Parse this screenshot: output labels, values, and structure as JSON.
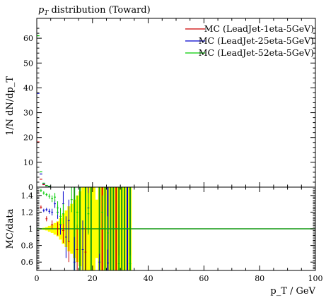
{
  "chart_data": [
    {
      "panel": "main",
      "type": "scatter",
      "title": "p_T distribution (Toward)",
      "title_parts": {
        "var": "p",
        "sub": "T",
        "rest": " distribution (Toward)"
      },
      "ylabel": "1/N dN/dp_T",
      "xlim": [
        0,
        100
      ],
      "ylim": [
        0,
        68
      ],
      "yticks": [
        0,
        10,
        20,
        30,
        40,
        50,
        60
      ],
      "legend_position": "top-right",
      "series": [
        {
          "name": "MC (LeadJet-1eta-5GeV)",
          "color": "#cc0000",
          "points": [
            [
              0.5,
              18.2
            ],
            [
              1.5,
              3.2
            ],
            [
              2.5,
              1.0
            ],
            [
              3.5,
              0.5
            ],
            [
              4.5,
              0.3
            ]
          ]
        },
        {
          "name": "MC (LeadJet-25eta-5GeV)",
          "color": "#0000cc",
          "points": [
            [
              0.5,
              37.8
            ],
            [
              1.5,
              5.3
            ],
            [
              2.5,
              1.4
            ],
            [
              3.5,
              0.6
            ],
            [
              4.5,
              0.3
            ]
          ]
        },
        {
          "name": "MC (LeadJet-52eta-5GeV)",
          "color": "#00cc00",
          "points": [
            [
              0.5,
              61.0
            ],
            [
              1.5,
              6.2
            ],
            [
              2.5,
              1.6
            ],
            [
              3.5,
              0.7
            ],
            [
              4.5,
              0.4
            ]
          ]
        }
      ]
    },
    {
      "panel": "ratio",
      "type": "scatter",
      "ylabel": "MC/data",
      "xlabel": "p_T / GeV",
      "xlim": [
        0,
        100
      ],
      "ylim": [
        0.5,
        1.5
      ],
      "yticks": [
        0.6,
        0.8,
        1,
        1.2,
        1.4
      ],
      "ytick_labels": [
        "0.6",
        "0.8",
        "1",
        "1.2",
        "1.4"
      ],
      "xticks": [
        0,
        20,
        40,
        60,
        80,
        100
      ],
      "xtick_labels": [
        "0",
        "20",
        "40",
        "60",
        "80",
        "100"
      ],
      "reference_line": 1,
      "reference_color": "#119911",
      "band_color": "#ffff00",
      "band": [
        [
          0,
          1,
          0.0
        ],
        [
          1,
          2,
          0.005
        ],
        [
          2,
          3,
          0.012
        ],
        [
          3,
          4,
          0.02
        ],
        [
          4,
          5,
          0.035
        ],
        [
          5,
          6,
          0.05
        ],
        [
          6,
          7,
          0.07
        ],
        [
          7,
          8,
          0.09
        ],
        [
          8,
          9,
          0.13
        ],
        [
          9,
          10,
          0.18
        ],
        [
          10,
          11,
          0.22
        ],
        [
          11,
          12,
          0.27
        ],
        [
          12,
          13,
          0.3
        ],
        [
          13,
          14,
          0.35
        ],
        [
          14,
          15,
          0.4
        ],
        [
          15,
          16,
          0.45
        ],
        [
          16,
          17,
          0.5
        ],
        [
          17,
          18,
          0.55
        ],
        [
          18,
          19,
          0.55
        ],
        [
          19,
          20,
          0.6
        ],
        [
          20,
          21,
          0.5
        ],
        [
          21,
          22,
          0.35
        ],
        [
          22,
          23,
          1.0
        ],
        [
          23,
          24,
          1.0
        ],
        [
          24,
          25,
          1.0
        ],
        [
          25,
          26,
          1.0
        ],
        [
          26,
          27,
          1.0
        ],
        [
          27,
          28,
          1.0
        ],
        [
          28,
          29,
          1.0
        ],
        [
          29,
          30,
          1.0
        ],
        [
          30,
          31,
          1.0
        ],
        [
          31,
          32,
          1.0
        ],
        [
          32,
          33,
          1.0
        ],
        [
          33,
          34,
          1.0
        ]
      ],
      "vlines": [
        {
          "x": 22.5,
          "color": "#119911"
        },
        {
          "x": 23.5,
          "color": "#cc0000"
        },
        {
          "x": 24.5,
          "color": "#119911"
        },
        {
          "x": 25.5,
          "color": "#0000cc"
        },
        {
          "x": 26.5,
          "color": "#119911"
        },
        {
          "x": 27.5,
          "color": "#119911"
        },
        {
          "x": 28.5,
          "color": "#cc0000"
        },
        {
          "x": 29.5,
          "color": "#119911"
        },
        {
          "x": 30.5,
          "color": "#119911"
        },
        {
          "x": 31.5,
          "color": "#119911"
        },
        {
          "x": 32.5,
          "color": "#0000cc"
        },
        {
          "x": 33.5,
          "color": "#119911"
        },
        {
          "x": 13.5,
          "color": "#119911"
        },
        {
          "x": 15.5,
          "color": "#119911"
        },
        {
          "x": 17.5,
          "color": "#119911"
        },
        {
          "x": 19.5,
          "color": "#119911"
        }
      ],
      "series": [
        {
          "name": "MC (LeadJet-1eta-5GeV)",
          "color": "#cc0000",
          "points": [
            [
              1.5,
              1.26,
              0.02
            ],
            [
              3.5,
              1.12,
              0.03
            ],
            [
              5.5,
              1.05,
              0.05
            ],
            [
              7.5,
              1.0,
              0.08
            ],
            [
              9.5,
              0.98,
              0.15
            ],
            [
              11.5,
              0.85,
              0.25
            ],
            [
              14.5,
              0.75,
              0.3
            ],
            [
              17.5,
              0.72,
              0.3
            ]
          ]
        },
        {
          "name": "MC (LeadJet-25eta-5GeV)",
          "color": "#0000cc",
          "points": [
            [
              2.5,
              1.22,
              0.02
            ],
            [
              3.5,
              1.23,
              0.02
            ],
            [
              4.5,
              1.21,
              0.03
            ],
            [
              5.5,
              1.2,
              0.04
            ],
            [
              6.5,
              1.3,
              0.05
            ],
            [
              7.5,
              1.2,
              0.08
            ],
            [
              8.5,
              1.05,
              0.12
            ],
            [
              9.5,
              1.3,
              0.15
            ],
            [
              10.5,
              0.9,
              0.25
            ],
            [
              11.5,
              1.1,
              0.25
            ],
            [
              13.5,
              0.6,
              0.3
            ],
            [
              16.5,
              0.75,
              0.35
            ],
            [
              18.5,
              1.25,
              0.3
            ],
            [
              22.5,
              0.6,
              0.1
            ],
            [
              25.5,
              0.59,
              0.1
            ]
          ]
        },
        {
          "name": "MC (LeadJet-52eta-5GeV)",
          "color": "#00cc00",
          "points": [
            [
              1.5,
              1.46,
              0.02
            ],
            [
              2.5,
              1.43,
              0.02
            ],
            [
              3.5,
              1.41,
              0.02
            ],
            [
              4.5,
              1.39,
              0.03
            ],
            [
              5.5,
              1.36,
              0.04
            ],
            [
              6.5,
              1.38,
              0.05
            ],
            [
              7.5,
              1.25,
              0.08
            ],
            [
              8.5,
              1.15,
              0.1
            ],
            [
              9.5,
              1.18,
              0.12
            ],
            [
              12.5,
              1.35,
              0.15
            ],
            [
              14.5,
              1.2,
              0.2
            ],
            [
              18.5,
              1.18,
              0.25
            ],
            [
              23.5,
              1.2,
              0.2
            ],
            [
              25.5,
              0.95,
              0.2
            ],
            [
              29.5,
              0.58,
              0.1
            ],
            [
              33.5,
              0.58,
              0.1
            ]
          ]
        }
      ]
    }
  ]
}
